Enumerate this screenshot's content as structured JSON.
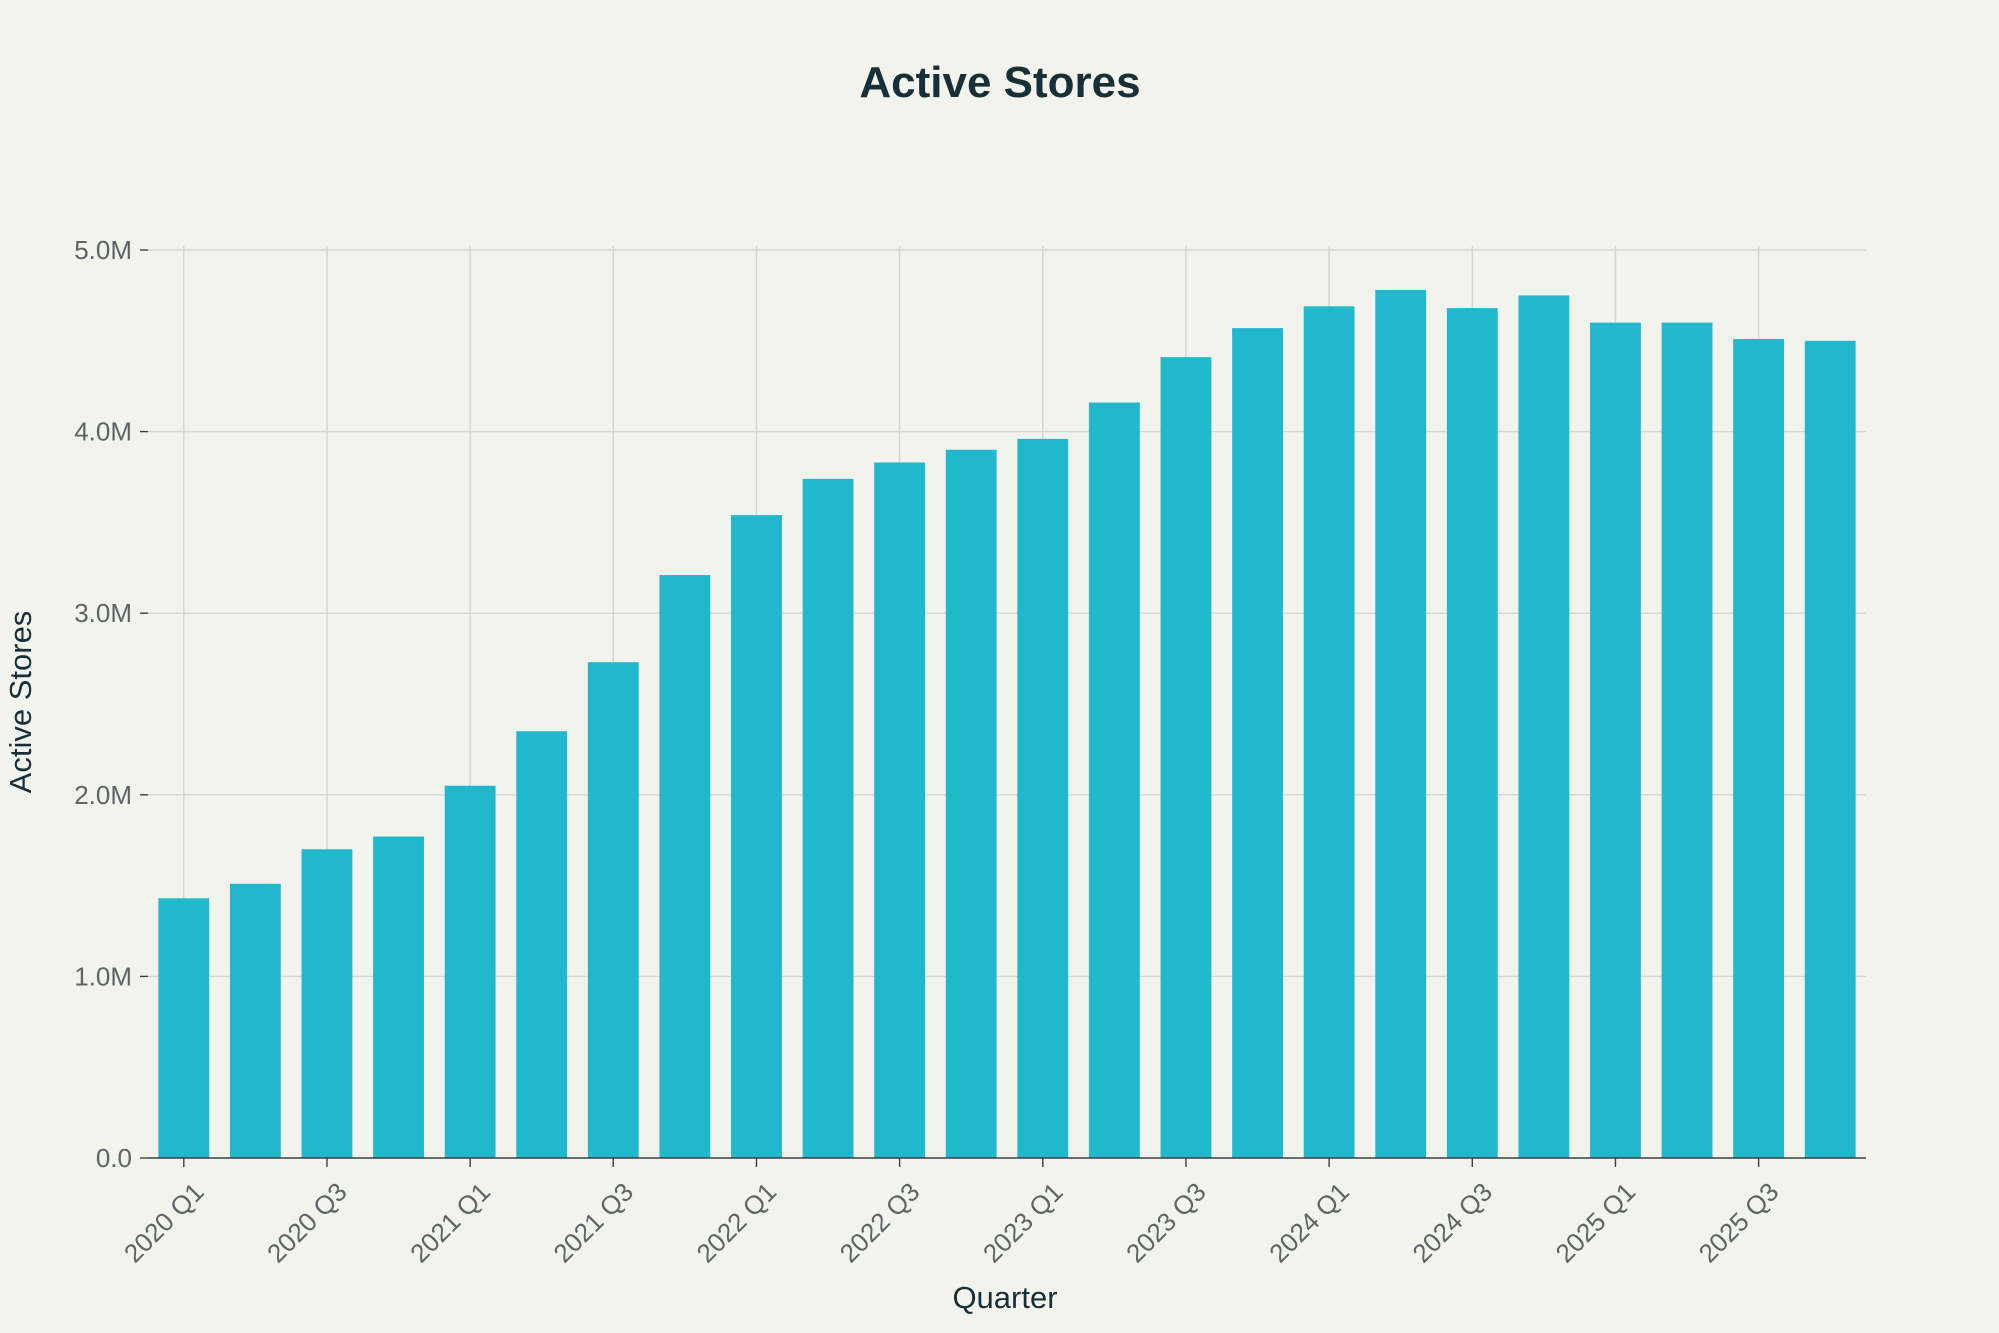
{
  "chart_data": {
    "type": "bar",
    "title": "Active Stores",
    "xlabel": "Quarter",
    "ylabel": "Active Stores",
    "categories": [
      "2020 Q1",
      "2020 Q2",
      "2020 Q3",
      "2020 Q4",
      "2021 Q1",
      "2021 Q2",
      "2021 Q3",
      "2021 Q4",
      "2022 Q1",
      "2022 Q2",
      "2022 Q3",
      "2022 Q4",
      "2023 Q1",
      "2023 Q2",
      "2023 Q3",
      "2023 Q4",
      "2024 Q1",
      "2024 Q2",
      "2024 Q3",
      "2024 Q4",
      "2025 Q1",
      "2025 Q2",
      "2025 Q3",
      "2025 Q4"
    ],
    "x_tick_labels": [
      "2020 Q1",
      "2020 Q3",
      "2021 Q1",
      "2021 Q3",
      "2022 Q1",
      "2022 Q3",
      "2023 Q1",
      "2023 Q3",
      "2024 Q1",
      "2024 Q3",
      "2025 Q1",
      "2025 Q3"
    ],
    "series": [
      {
        "values": [
          1.43,
          1.51,
          1.7,
          1.77,
          2.05,
          2.35,
          2.73,
          3.21,
          3.54,
          3.74,
          3.83,
          3.9,
          3.96,
          4.16,
          4.41,
          4.57,
          4.69,
          4.78,
          4.68,
          4.75,
          4.6,
          4.6,
          4.51,
          4.5
        ]
      }
    ],
    "value_unit": "M",
    "ylim": [
      0,
      5
    ],
    "y_ticks": [
      0,
      1,
      2,
      3,
      4,
      5
    ],
    "y_tick_labels": [
      "0.0",
      "1.0M",
      "2.0M",
      "3.0M",
      "4.0M",
      "5.0M"
    ],
    "grid": true,
    "legend": "none",
    "colors": {
      "bar": "#21b7cc",
      "background": "#f3f3ee"
    }
  }
}
